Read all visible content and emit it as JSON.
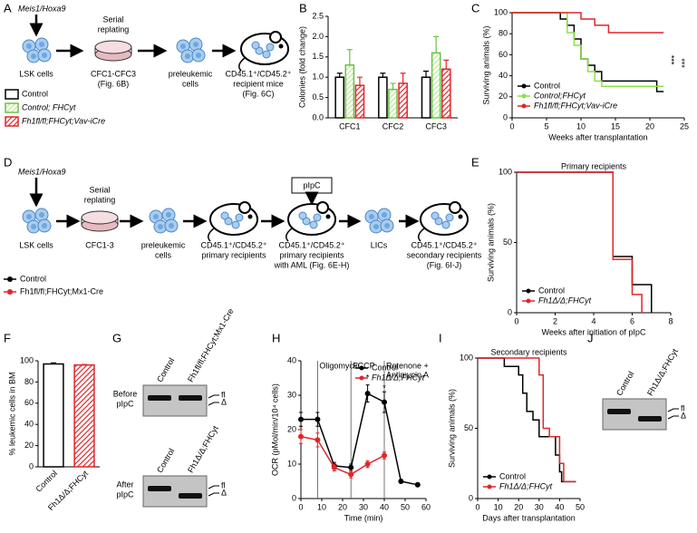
{
  "panel_labels": [
    "A",
    "B",
    "C",
    "D",
    "E",
    "F",
    "G",
    "H",
    "I",
    "J"
  ],
  "panel_a": {
    "top_label": "Meis1/Hoxa9",
    "above_dish": [
      "Serial",
      "replating"
    ],
    "captions": [
      [
        "LSK cells"
      ],
      [
        "CFC1-CFC3",
        "(Fig. 6B)"
      ],
      [
        "preleukemic",
        "cells"
      ],
      [
        "CD45.1⁺/CD45.2⁺",
        "recipient mice",
        "(Fig. 6C)"
      ]
    ]
  },
  "panel_d": {
    "top_label": "Meis1/Hoxa9",
    "above_dish": [
      "Serial",
      "replating"
    ],
    "treatment": "pIpC",
    "captions": [
      [
        "LSK cells"
      ],
      [
        "CFC1-3"
      ],
      [
        "preleukemic",
        "cells"
      ],
      [
        "CD45.1⁺/CD45.2⁺",
        "primary recipients"
      ],
      [
        "CD45.1⁺/CD45.2⁺",
        "primary recipients",
        "with AML (Fig. 6E-H)"
      ],
      [
        "LICs"
      ],
      [
        "CD45.1⁺/CD45.2⁺",
        "secondary recipients",
        "(Fig. 6I-J)"
      ]
    ],
    "legend": [
      {
        "name": "Control",
        "color": "#000000"
      },
      {
        "name": "Fh1fl/fl;FHCyt;Mx1-Cre",
        "color": "#e0262b"
      }
    ]
  },
  "gel_g": {
    "blots": [
      {
        "lanes": [
          "Control",
          "Fh1fl/fl;FHCyt;Mx1-Cre"
        ],
        "row_label": [
          "Before",
          "pIpC"
        ],
        "bands": [
          "fl",
          "Δ"
        ]
      },
      {
        "lanes": [
          "Control",
          "Fh1Δ/Δ;FHCyt"
        ],
        "row_label": [
          "After",
          "pIpC"
        ],
        "bands": [
          "fl",
          "Δ"
        ]
      }
    ]
  },
  "gel_j": {
    "lanes": [
      "Control",
      "Fh1Δ/Δ;FHCyt"
    ],
    "bands": [
      "fl",
      "Δ"
    ]
  },
  "chart_data": [
    {
      "type": "bar",
      "ylabel": "Colonies (fold change)",
      "categories": [
        "CFC1",
        "CFC2",
        "CFC3"
      ],
      "legend": "outside left",
      "ylim": [
        0,
        2.5
      ],
      "yticks": [
        {
          "value": 0,
          "label": "0.0"
        },
        {
          "value": 0.5,
          "label": "0.5"
        },
        {
          "value": 1,
          "label": "1.0"
        },
        {
          "value": 1.5,
          "label": "1.5"
        },
        {
          "value": 2,
          "label": "2.0"
        },
        {
          "value": 2.5,
          "label": "2.5"
        }
      ],
      "series": [
        {
          "name": "Control",
          "color": "#ffffff",
          "edge": "#000000",
          "hatch": false,
          "values": [
            1.0,
            1.0,
            1.0
          ],
          "errors": [
            0.1,
            0.1,
            0.15
          ]
        },
        {
          "name": "Control; FHCyt",
          "color": "#b6ee8a",
          "edge": "#6cc04a",
          "hatch": true,
          "values": [
            1.3,
            0.7,
            1.6
          ],
          "errors": [
            0.38,
            0.15,
            0.4
          ]
        },
        {
          "name": "Fh1fl/fl;FHCyt;Vav-iCre",
          "color": "#e0262b",
          "edge": "#e0262b",
          "hatch": true,
          "values": [
            0.8,
            0.85,
            1.2
          ],
          "errors": [
            0.2,
            0.25,
            0.22
          ]
        }
      ]
    },
    {
      "type": "line",
      "xlabel": "Weeks after transplantation",
      "ylabel": "Surviving animals (%)",
      "xlim": [
        0,
        25
      ],
      "xticks": [
        0,
        5,
        10,
        15,
        20,
        25
      ],
      "ylim": [
        0,
        100
      ],
      "yticks": [
        0,
        20,
        40,
        60,
        80,
        100
      ],
      "legend": "lower left",
      "annotations": [
        {
          "text": "***",
          "x": 23,
          "y": 55
        },
        {
          "text": "***",
          "x": 24.5,
          "y": 52
        }
      ],
      "series": [
        {
          "name": "Control",
          "color": "#000000",
          "x": [
            0,
            7,
            7,
            8,
            8,
            9,
            9,
            10,
            10,
            11,
            11,
            12,
            12,
            13,
            13,
            21,
            21,
            22
          ],
          "values": [
            100,
            100,
            94,
            94,
            88,
            88,
            75,
            75,
            56,
            56,
            50,
            50,
            44,
            44,
            35,
            35,
            25,
            25
          ]
        },
        {
          "name": "Control;FHCyt",
          "color": "#8ee04a",
          "x": [
            0,
            8,
            8,
            9,
            9,
            10,
            10,
            11,
            11,
            12,
            12,
            13,
            13,
            22
          ],
          "values": [
            100,
            100,
            81,
            81,
            69,
            69,
            56,
            56,
            44,
            44,
            35,
            35,
            30,
            30
          ]
        },
        {
          "name": "Fh1fl/fl;FHCyt;Vav-iCre",
          "color": "#e0262b",
          "x": [
            0,
            10,
            10,
            12,
            12,
            14,
            14,
            22
          ],
          "values": [
            100,
            100,
            94,
            94,
            88,
            88,
            81,
            81
          ]
        }
      ]
    },
    {
      "type": "line",
      "title": "Primary recipients",
      "xlabel": "Weeks after initiation of pIpC",
      "ylabel": "Surviving animals (%)",
      "xlim": [
        0,
        8
      ],
      "xticks": [
        0,
        2,
        4,
        6,
        8
      ],
      "ylim": [
        0,
        100
      ],
      "yticks": [
        0,
        50,
        100
      ],
      "legend": "lower left",
      "series": [
        {
          "name": "Control",
          "color": "#000000",
          "x": [
            0,
            5,
            5,
            6,
            6,
            7,
            7
          ],
          "values": [
            100,
            100,
            40,
            40,
            20,
            20,
            0
          ]
        },
        {
          "name": "Fh1Δ/Δ;FHCyt",
          "color": "#e0262b",
          "x": [
            0,
            5,
            5,
            6,
            6,
            6.5,
            6.5
          ],
          "values": [
            100,
            100,
            38,
            38,
            13,
            13,
            0
          ]
        }
      ]
    },
    {
      "type": "bar",
      "ylabel": "% leukemic cells in BM",
      "categories": [
        "Control",
        "Fh1Δ/Δ;FHCyt"
      ],
      "ylim": [
        0,
        100
      ],
      "yticks": [
        0,
        20,
        40,
        60,
        80,
        100
      ],
      "series": [
        {
          "values": [
            97,
            96
          ],
          "errors": [
            1,
            0.5
          ],
          "colors": [
            "#ffffff",
            "#e0262b"
          ],
          "edges": [
            "#000000",
            "#e0262b"
          ],
          "hatches": [
            false,
            true
          ]
        }
      ]
    },
    {
      "type": "line",
      "markers": true,
      "xlabel": "Time (min)",
      "ylabel": "OCR (pMol/min/10⁴ cells)",
      "xlim": [
        0,
        60
      ],
      "xticks": [
        0,
        10,
        20,
        30,
        40,
        50,
        60
      ],
      "ylim": [
        0,
        40
      ],
      "yticks": [
        0,
        10,
        20,
        30,
        40
      ],
      "legend": "upper right",
      "injections": [
        {
          "label": [
            "Oligomycin"
          ],
          "x": 8
        },
        {
          "label": [
            "FCCP"
          ],
          "x": 24
        },
        {
          "label": [
            "Rotenone +",
            "Antimycin A"
          ],
          "x": 40
        }
      ],
      "annotations": [
        {
          "text": "*",
          "x": 32,
          "y": 35
        },
        {
          "text": "*",
          "x": 40,
          "y": 32
        }
      ],
      "series": [
        {
          "name": "Control",
          "color": "#000000",
          "x": [
            0,
            8,
            16,
            24,
            32,
            40,
            48,
            56
          ],
          "values": [
            23,
            23,
            9.5,
            9,
            30.5,
            28,
            5,
            4
          ],
          "errors": [
            2,
            2,
            1,
            1,
            2.5,
            3,
            0.5,
            0.5
          ]
        },
        {
          "name": "Fh1Δ/Δ;FHCyt",
          "color": "#e0262b",
          "x": [
            0,
            8,
            16,
            24,
            32,
            40
          ],
          "values": [
            18,
            17,
            9,
            7,
            10,
            12.5
          ],
          "errors": [
            2,
            2,
            1,
            1,
            1,
            1
          ]
        }
      ]
    },
    {
      "type": "line",
      "title": "Secondary recipients",
      "xlabel": "Days after transplantation",
      "ylabel": "Surviving animals (%)",
      "xlim": [
        0,
        50
      ],
      "xticks": [
        0,
        10,
        20,
        30,
        40,
        50
      ],
      "ylim": [
        0,
        100
      ],
      "yticks": [
        0,
        50,
        100
      ],
      "legend": "lower left",
      "series": [
        {
          "name": "Control",
          "color": "#000000",
          "x": [
            0,
            13,
            13,
            20,
            20,
            22,
            22,
            24,
            24,
            27,
            27,
            30,
            30,
            38,
            38,
            40,
            40,
            41,
            41,
            48
          ],
          "values": [
            100,
            100,
            94,
            94,
            88,
            88,
            75,
            75,
            62,
            62,
            56,
            56,
            44,
            44,
            31,
            31,
            19,
            19,
            12,
            12
          ]
        },
        {
          "name": "Fh1Δ/Δ;FHCyt",
          "color": "#e0262b",
          "x": [
            0,
            30,
            30,
            32,
            32,
            35,
            35,
            40,
            40,
            42,
            42,
            48
          ],
          "values": [
            100,
            100,
            88,
            88,
            50,
            50,
            44,
            44,
            25,
            25,
            12,
            12
          ]
        }
      ]
    }
  ]
}
